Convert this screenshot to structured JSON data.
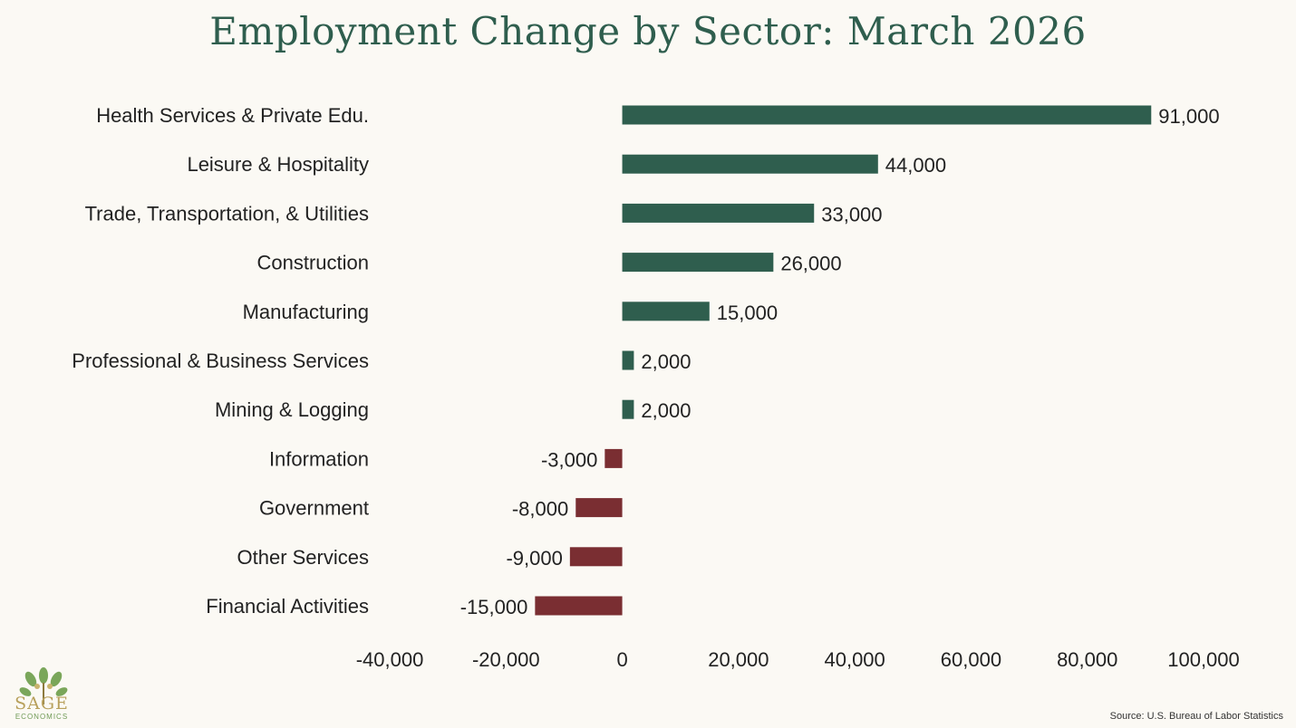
{
  "chart_data": {
    "type": "bar",
    "orientation": "horizontal",
    "title": "Employment Change by Sector: March 2026",
    "categories": [
      "Health Services & Private Edu.",
      "Leisure & Hospitality",
      "Trade, Transportation, & Utilities",
      "Construction",
      "Manufacturing",
      "Professional & Business Services",
      "Mining & Logging",
      "Information",
      "Government",
      "Other Services",
      "Financial Activities"
    ],
    "values": [
      91000,
      44000,
      33000,
      26000,
      15000,
      2000,
      2000,
      -3000,
      -8000,
      -9000,
      -15000
    ],
    "value_labels": [
      "91,000",
      "44,000",
      "33,000",
      "26,000",
      "15,000",
      "2,000",
      "2,000",
      "-3,000",
      "-8,000",
      "-9,000",
      "-15,000"
    ],
    "xlim": [
      -40000,
      100000
    ],
    "xticks": [
      -40000,
      -20000,
      0,
      20000,
      40000,
      60000,
      80000,
      100000
    ],
    "xtick_labels": [
      "-40,000",
      "-20,000",
      "0",
      "20,000",
      "40,000",
      "60,000",
      "80,000",
      "100,000"
    ],
    "positive_color": "#2f5e4e",
    "negative_color": "#7a2e32",
    "grid": false,
    "legend": "none"
  },
  "footer": {
    "source": "Source: U.S. Bureau of Labor Statistics",
    "logo_text": "SAGE",
    "logo_subtext": "ECONOMICS"
  }
}
